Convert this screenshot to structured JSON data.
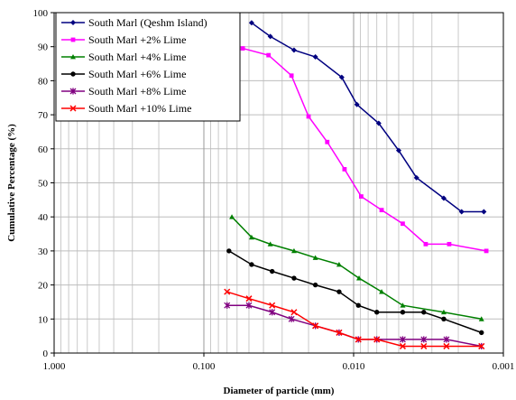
{
  "chart_data": {
    "type": "line",
    "xlabel": "Diameter of particle  (mm)",
    "ylabel": "Cumulative Percentage (%)",
    "xscale": "log",
    "x_reversed": true,
    "xlim": [
      1.0,
      0.001
    ],
    "ylim": [
      0,
      100
    ],
    "x_tick_labels": [
      "1.000",
      "0.100",
      "0.010",
      "0.001"
    ],
    "x_tick_values": [
      1.0,
      0.1,
      0.01,
      0.001
    ],
    "y_tick_labels": [
      "0",
      "10",
      "20",
      "30",
      "40",
      "50",
      "60",
      "70",
      "80",
      "90",
      "100"
    ],
    "y_tick_values": [
      0,
      10,
      20,
      30,
      40,
      50,
      60,
      70,
      80,
      90,
      100
    ],
    "grid": true,
    "legend_position": "top-left",
    "series": [
      {
        "name": "South Marl (Qeshm Island)",
        "color": "#000080",
        "marker": "diamond",
        "x": [
          0.048,
          0.036,
          0.025,
          0.018,
          0.012,
          0.0095,
          0.0068,
          0.005,
          0.0038,
          0.0025,
          0.0019,
          0.00135
        ],
        "y": [
          97,
          93,
          89,
          87,
          81,
          73,
          67.5,
          59.5,
          51.5,
          45.5,
          41.5,
          41.5
        ]
      },
      {
        "name": "South Marl +2% Lime",
        "color": "#FF00FF",
        "marker": "square",
        "x": [
          0.055,
          0.037,
          0.026,
          0.02,
          0.015,
          0.0115,
          0.0089,
          0.0065,
          0.0047,
          0.0033,
          0.0023,
          0.0013
        ],
        "y": [
          89.5,
          87.5,
          81.5,
          69.5,
          62,
          54,
          46,
          42,
          38,
          32,
          32,
          30
        ]
      },
      {
        "name": "South Marl +4% Lime",
        "color": "#008000",
        "marker": "triangle",
        "x": [
          0.065,
          0.048,
          0.036,
          0.025,
          0.018,
          0.0125,
          0.0092,
          0.0065,
          0.0047,
          0.0025,
          0.0014
        ],
        "y": [
          40,
          34,
          32,
          30,
          28,
          26,
          22,
          18,
          14,
          12,
          10
        ]
      },
      {
        "name": "South Marl +6% Lime",
        "color": "#000000",
        "marker": "circle",
        "x": [
          0.068,
          0.048,
          0.035,
          0.025,
          0.018,
          0.0125,
          0.0093,
          0.007,
          0.0047,
          0.0034,
          0.0025,
          0.0014
        ],
        "y": [
          30,
          26,
          24,
          22,
          20,
          18,
          14,
          12,
          12,
          12,
          10,
          6
        ]
      },
      {
        "name": "South Marl +8% Lime",
        "color": "#800080",
        "marker": "star",
        "x": [
          0.07,
          0.05,
          0.035,
          0.026,
          0.018,
          0.0125,
          0.0093,
          0.007,
          0.0047,
          0.0034,
          0.0024,
          0.0014
        ],
        "y": [
          14,
          14,
          12,
          10,
          8,
          6,
          4,
          4,
          4,
          4,
          4,
          2
        ]
      },
      {
        "name": "South Marl +10% Lime",
        "color": "#FF0000",
        "marker": "x",
        "x": [
          0.07,
          0.05,
          0.035,
          0.025,
          0.018,
          0.0125,
          0.0093,
          0.007,
          0.0047,
          0.0034,
          0.0024,
          0.0014
        ],
        "y": [
          18,
          16,
          14,
          12,
          8,
          6,
          4,
          4,
          2,
          2,
          2,
          2
        ]
      }
    ]
  }
}
